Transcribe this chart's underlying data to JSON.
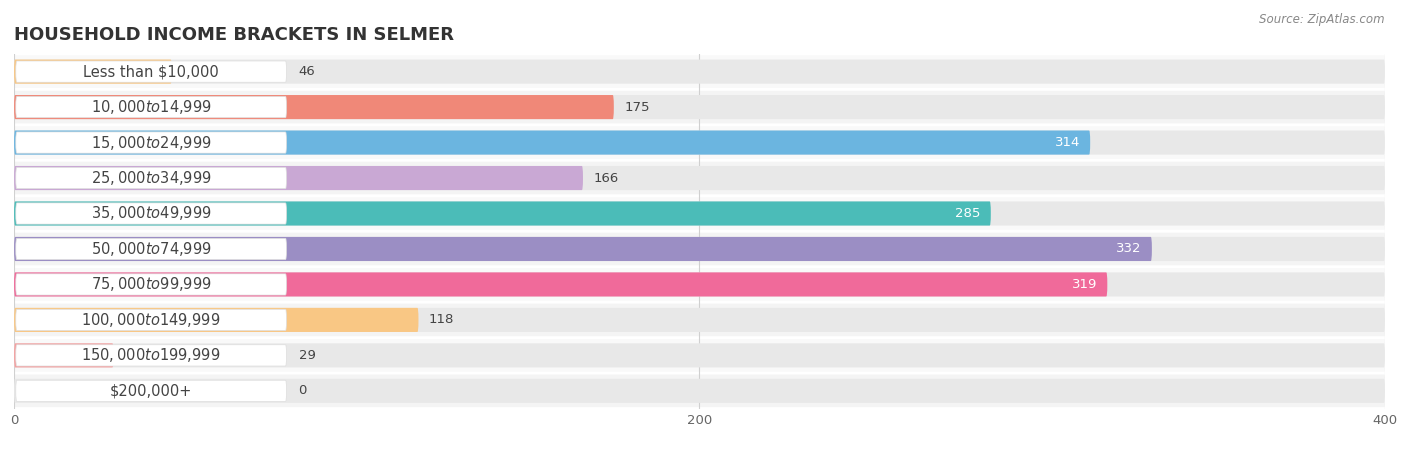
{
  "title": "HOUSEHOLD INCOME BRACKETS IN SELMER",
  "source": "Source: ZipAtlas.com",
  "categories": [
    "Less than $10,000",
    "$10,000 to $14,999",
    "$15,000 to $24,999",
    "$25,000 to $34,999",
    "$35,000 to $49,999",
    "$50,000 to $74,999",
    "$75,000 to $99,999",
    "$100,000 to $149,999",
    "$150,000 to $199,999",
    "$200,000+"
  ],
  "values": [
    46,
    175,
    314,
    166,
    285,
    332,
    319,
    118,
    29,
    0
  ],
  "colors": [
    "#F9C784",
    "#F08878",
    "#6BB5E0",
    "#C9A8D4",
    "#4BBCB8",
    "#9B8EC4",
    "#F06A9A",
    "#F9C784",
    "#F4A0A0",
    "#A8C8F0"
  ],
  "data_max": 400,
  "xticks": [
    0,
    200,
    400
  ],
  "bar_bg_color": "#e8e8e8",
  "title_fontsize": 13,
  "label_fontsize": 10.5,
  "value_fontsize": 9.5,
  "pill_bg_color": "#f8f8f8",
  "row_bg_colors": [
    "#f5f5f5",
    "#efefef"
  ]
}
